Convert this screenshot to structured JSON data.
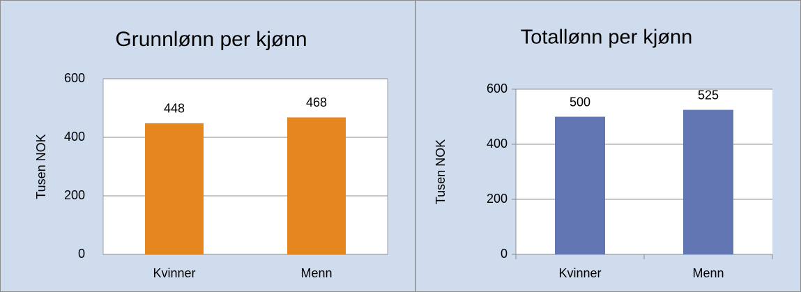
{
  "chart_data": [
    {
      "type": "bar",
      "title": "Grunnlønn per kjønn",
      "y_label": "Tusen NOK",
      "categories": [
        "Kvinner",
        "Menn"
      ],
      "values": [
        448,
        468
      ],
      "color": "#e6861f",
      "ylim": [
        0,
        600
      ],
      "yticks": [
        0,
        200,
        400,
        600
      ],
      "grid": true
    },
    {
      "type": "bar",
      "title": "Totallønn per kjønn",
      "y_label": "Tusen NOK",
      "categories": [
        "Kvinner",
        "Menn"
      ],
      "values": [
        500,
        525
      ],
      "color": "#6176b3",
      "ylim": [
        0,
        600
      ],
      "yticks": [
        0,
        200,
        400,
        600
      ],
      "grid": true
    }
  ]
}
